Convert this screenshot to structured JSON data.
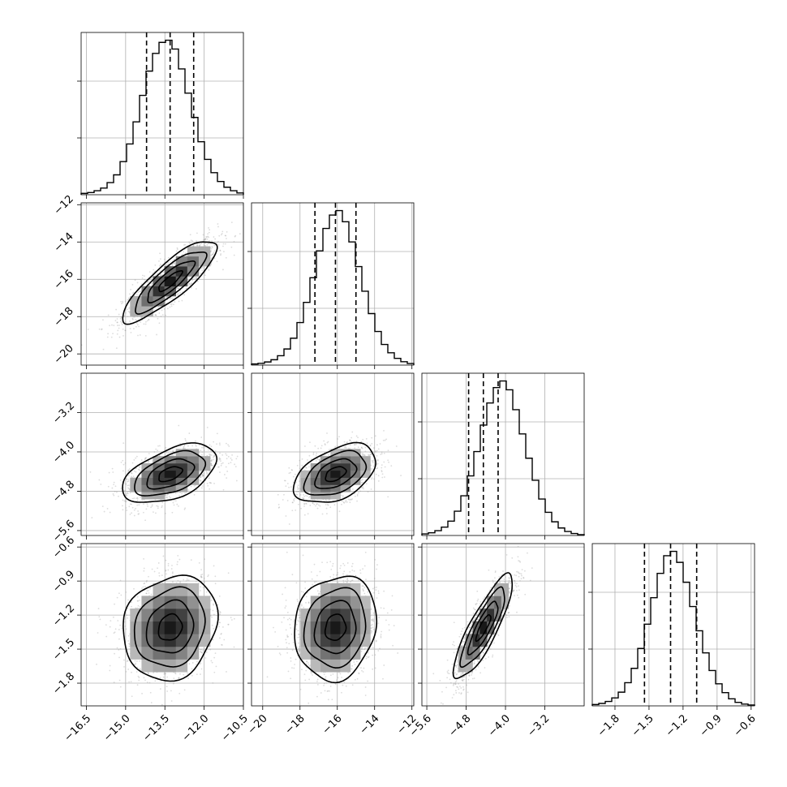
{
  "chart_data": {
    "type": "corner",
    "n_params": 4,
    "grid": true,
    "colors": {
      "line": "#000000",
      "grid": "#b0b0b0",
      "points": "#9a9a9a"
    },
    "params": [
      {
        "name": "",
        "mean": -13.3,
        "sd": 0.9,
        "quantiles": [
          -14.2,
          -13.3,
          -12.4
        ],
        "range": [
          -16.7,
          -10.5
        ],
        "ticks": [
          -16.5,
          -15.0,
          -13.5,
          -12.0,
          -10.5
        ],
        "tick_labels": [
          "−16.5",
          "−15.0",
          "−13.5",
          "−12.0",
          "−10.5"
        ]
      },
      {
        "name": "",
        "mean": -16.1,
        "sd": 1.1,
        "quantiles": [
          -17.2,
          -16.1,
          -15.0
        ],
        "range": [
          -20.6,
          -11.9
        ],
        "ticks": [
          -20,
          -18,
          -16,
          -14,
          -12
        ],
        "tick_labels": [
          "−20",
          "−18",
          "−16",
          "−14",
          "−12"
        ]
      },
      {
        "name": "",
        "mean": -4.45,
        "sd": 0.3,
        "quantiles": [
          -4.75,
          -4.45,
          -4.15
        ],
        "range": [
          -5.7,
          -2.4
        ],
        "ticks": [
          -5.6,
          -4.8,
          -4.0,
          -3.2
        ],
        "tick_labels": [
          "−5.6",
          "−4.8",
          "−4.0",
          "−3.2"
        ]
      },
      {
        "name": "",
        "mean": -1.31,
        "sd": 0.23,
        "quantiles": [
          -1.54,
          -1.31,
          -1.08
        ],
        "range": [
          -2.0,
          -0.57
        ],
        "ticks": [
          -1.8,
          -1.5,
          -1.2,
          -0.9,
          -0.6
        ],
        "tick_labels": [
          "−1.8",
          "−1.5",
          "−1.2",
          "−0.9",
          "−0.6"
        ]
      }
    ],
    "correlations": [
      {
        "i": 1,
        "j": 0,
        "rho": 0.85
      },
      {
        "i": 2,
        "j": 0,
        "rho": 0.5
      },
      {
        "i": 2,
        "j": 1,
        "rho": 0.45
      },
      {
        "i": 3,
        "j": 0,
        "rho": 0.15
      },
      {
        "i": 3,
        "j": 1,
        "rho": 0.12
      },
      {
        "i": 3,
        "j": 2,
        "rho": 0.85
      }
    ],
    "histograms": [
      {
        "param": 0,
        "counts": [
          6,
          10,
          18,
          30,
          55,
          90,
          150,
          230,
          330,
          450,
          560,
          640,
          690,
          700,
          660,
          570,
          460,
          350,
          240,
          160,
          100,
          60,
          34,
          18,
          8
        ]
      },
      {
        "param": 1,
        "counts": [
          5,
          8,
          14,
          24,
          42,
          72,
          120,
          190,
          280,
          390,
          510,
          610,
          670,
          690,
          640,
          550,
          440,
          330,
          230,
          150,
          92,
          55,
          30,
          15,
          7
        ]
      },
      {
        "param": 2,
        "counts": [
          7,
          12,
          22,
          38,
          65,
          110,
          180,
          270,
          380,
          500,
          600,
          670,
          700,
          660,
          570,
          460,
          350,
          250,
          165,
          105,
          62,
          34,
          18,
          9,
          4
        ]
      },
      {
        "param": 3,
        "counts": [
          6,
          11,
          20,
          36,
          62,
          105,
          170,
          260,
          370,
          490,
          600,
          680,
          700,
          650,
          560,
          450,
          340,
          240,
          160,
          100,
          60,
          32,
          16,
          8,
          4
        ]
      }
    ]
  }
}
